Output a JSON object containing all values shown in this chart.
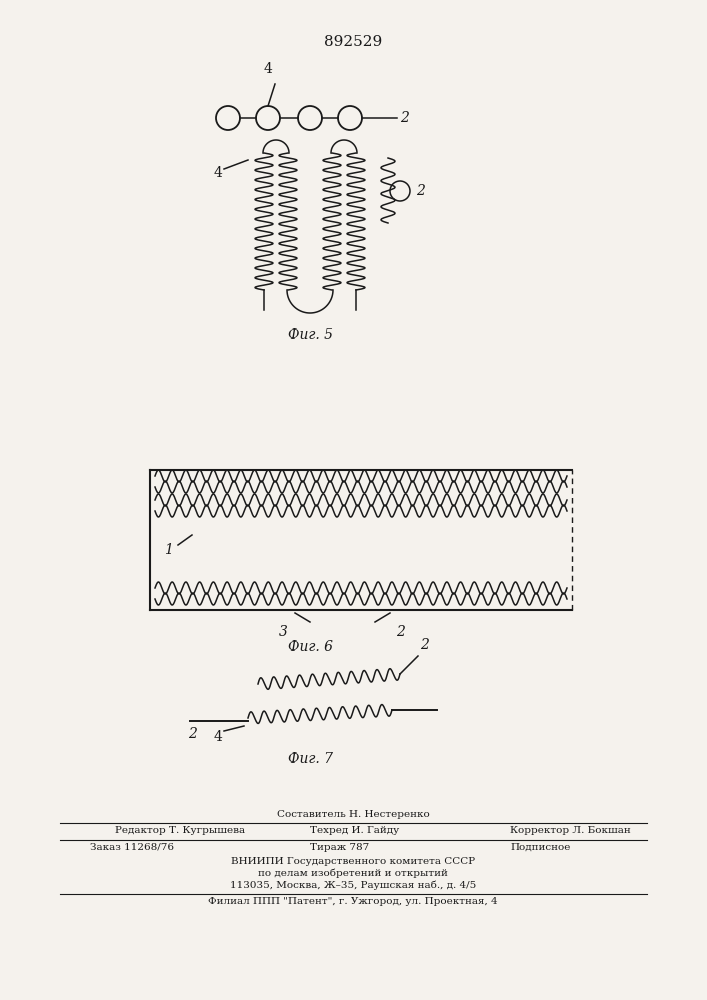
{
  "patent_number": "892529",
  "fig5_label": "Фиг. 5",
  "fig6_label": "Фиг. 6",
  "fig7_label": "Фиг. 7",
  "bg_color": "#f5f2ed",
  "line_color": "#1a1a1a",
  "label1": "1",
  "label2": "2",
  "label3": "3",
  "label4": "4",
  "footer_line0": "Составитель Н. Нестеренко",
  "footer_line1_left": "Редактор Т. Кугрышева",
  "footer_line1_mid": "Техред И. Гайду",
  "footer_line1_right": "Корректор Л. Бокшан",
  "footer_line2_left": "Заказ 11268/76",
  "footer_line2_mid": "Тираж 787",
  "footer_line2_right": "Подписное",
  "footer_line3": "ВНИИПИ Государственного комитета СССР",
  "footer_line4": "по делам изобретений и открытий",
  "footer_line5": "113035, Москва, Ж–35, Раушская наб., д. 4/5",
  "footer_line6": "Филиал ППП \"Патент\", г. Ужгород, ул. Проектная, 4"
}
